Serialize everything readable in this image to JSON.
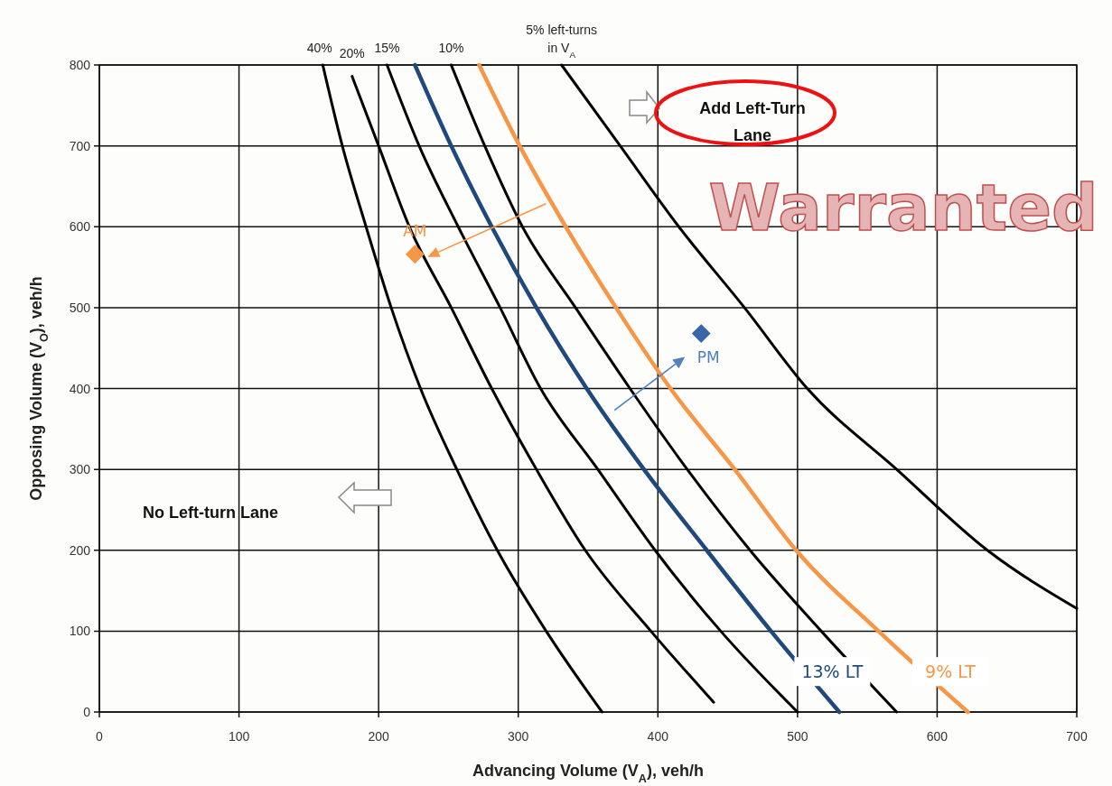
{
  "chart_data": {
    "type": "line",
    "xlabel": "Advancing Volume (V$_{A}$), veh/h",
    "ylabel": "Opposing Volume (V$_{O}$), veh/h",
    "xlim": [
      0,
      700
    ],
    "ylim": [
      0,
      800
    ],
    "xticks": [
      0,
      100,
      200,
      300,
      400,
      500,
      600,
      700
    ],
    "yticks": [
      0,
      100,
      200,
      300,
      400,
      500,
      600,
      700,
      800
    ],
    "grid": true,
    "series": [
      {
        "name": "40%",
        "color": "#000000",
        "x": [
          160,
          174,
          191,
          209,
          230,
          256,
          285,
          320,
          360
        ],
        "values": [
          800,
          700,
          600,
          500,
          400,
          300,
          200,
          100,
          0
        ]
      },
      {
        "name": "20%",
        "color": "#000000",
        "x": [
          181,
          200,
          222,
          252,
          281,
          313,
          348,
          395,
          440
        ],
        "values": [
          786,
          700,
          600,
          500,
          400,
          300,
          200,
          100,
          12
        ]
      },
      {
        "name": "15%",
        "color": "#000000",
        "x": [
          206,
          229,
          257,
          287,
          316,
          357,
          398,
          445,
          500
        ],
        "values": [
          800,
          700,
          600,
          500,
          400,
          300,
          200,
          100,
          0
        ]
      },
      {
        "name": "13% LT",
        "color": "#1f497d",
        "x": [
          226,
          252,
          281,
          313,
          349,
          390,
          435,
          481,
          530
        ],
        "values": [
          800,
          700,
          600,
          500,
          400,
          300,
          200,
          100,
          0
        ]
      },
      {
        "name": "10%",
        "color": "#000000",
        "x": [
          252,
          276,
          303,
          341,
          380,
          421,
          466,
          517,
          571
        ],
        "values": [
          800,
          700,
          600,
          500,
          400,
          300,
          200,
          100,
          0
        ]
      },
      {
        "name": "9% LT",
        "color": "#f79646",
        "x": [
          272,
          301,
          334,
          370,
          409,
          455,
          499,
          558,
          622
        ],
        "values": [
          800,
          700,
          600,
          500,
          400,
          300,
          200,
          100,
          0
        ]
      },
      {
        "name": "5% left-turns in V$_{A}$",
        "color": "#000000",
        "x": [
          331,
          373,
          415,
          462,
          507,
          571,
          636,
          700
        ],
        "values": [
          800,
          700,
          600,
          500,
          400,
          300,
          200,
          128
        ]
      },
      {
        "name": "AM",
        "type": "scatter",
        "marker": "diamond",
        "color": "#f79646",
        "x": [
          226
        ],
        "values": [
          566
        ]
      },
      {
        "name": "PM",
        "type": "scatter",
        "marker": "diamond",
        "color": "#3a66a8",
        "x": [
          431
        ],
        "values": [
          468
        ]
      }
    ],
    "annotations": [
      "No Left-turn Lane",
      "Add Left-Turn Lane",
      "Warranted"
    ]
  }
}
